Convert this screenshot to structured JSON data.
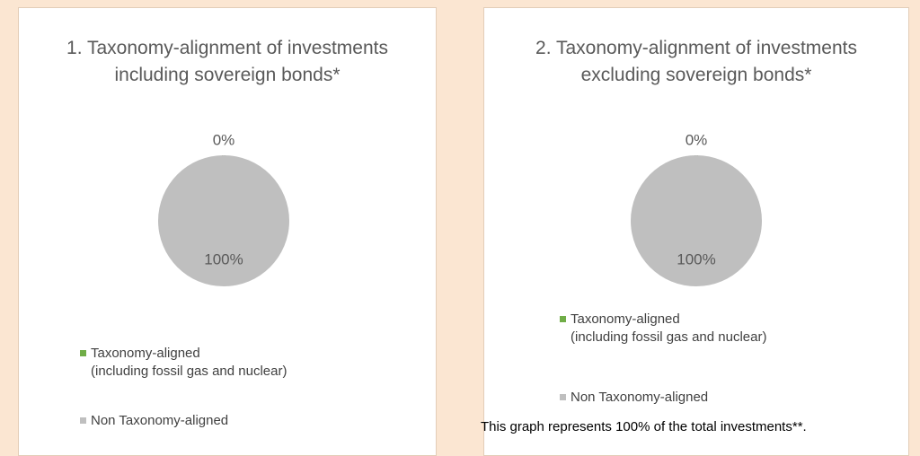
{
  "chart_data": [
    {
      "type": "pie",
      "title": "1. Taxonomy-alignment of investments including sovereign bonds*",
      "categories": [
        "Taxonomy-aligned\n(including fossil gas and nuclear)",
        "Non Taxonomy-aligned"
      ],
      "values": [
        0,
        100
      ],
      "value_labels": [
        "0%",
        "100%"
      ],
      "colors": [
        "#548235",
        "#bfbfbf"
      ],
      "legend_colors": [
        "#70ad47",
        "#bfbfbf"
      ]
    },
    {
      "type": "pie",
      "title": "2. Taxonomy-alignment of investments excluding sovereign bonds*",
      "categories": [
        "Taxonomy-aligned\n(including fossil gas and nuclear)",
        "Non Taxonomy-aligned"
      ],
      "values": [
        0,
        100
      ],
      "value_labels": [
        "0%",
        "100%"
      ],
      "colors": [
        "#548235",
        "#bfbfbf"
      ],
      "legend_colors": [
        "#70ad47",
        "#bfbfbf"
      ],
      "note": "This graph represents 100% of the total investments**."
    }
  ]
}
